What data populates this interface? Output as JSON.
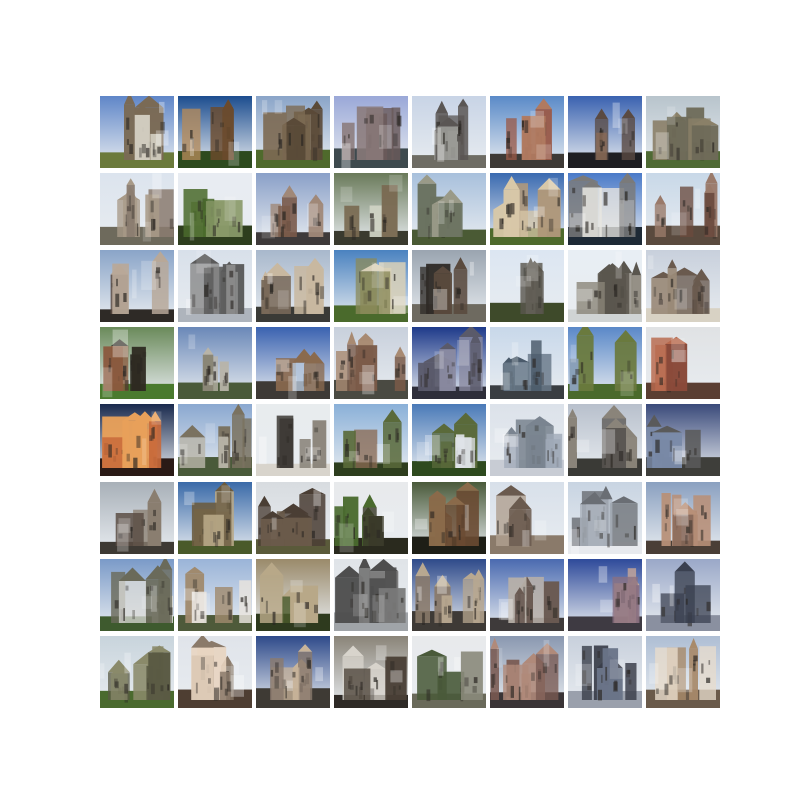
{
  "tiles": [
    [
      "#5f86c8",
      "#d8d4c8",
      "#7a6a55",
      "#6b7a3c"
    ],
    [
      "#1c4d8f",
      "#b58a5a",
      "#6b4a2c",
      "#2d4a1e"
    ],
    [
      "#8aa4c8",
      "#7c6a52",
      "#5a4a38",
      "#4f6a2c"
    ],
    [
      "#9aa8d8",
      "#8a7a7a",
      "#6a5a5a",
      "#3e4a4e"
    ],
    [
      "#c8d4e6",
      "#9a9a96",
      "#5a5654",
      "#6e6c64"
    ],
    [
      "#5a8ac8",
      "#9a5a48",
      "#b07a60",
      "#3e3a36"
    ],
    [
      "#3a62b0",
      "#8a6a56",
      "#5a4a42",
      "#1e1e22"
    ],
    [
      "#b8c4cc",
      "#6e6a58",
      "#8a8068",
      "#4f6a34"
    ],
    [
      "#dce4ee",
      "#8a7c70",
      "#a89a88",
      "#6e6a5c"
    ],
    [
      "#e8ecf2",
      "#4a6a2c",
      "#8a9a6a",
      "#2e3e1e"
    ],
    [
      "#8aa0c8",
      "#7a5a4a",
      "#a08878",
      "#3e3a3a"
    ],
    [
      "#6a7a5a",
      "#cfd2c4",
      "#7a6a52",
      "#3a3a2e"
    ],
    [
      "#a8c0dc",
      "#6a7260",
      "#9a9a88",
      "#4a5a34"
    ],
    [
      "#3a6ab0",
      "#b0987a",
      "#d8c8a8",
      "#4e6a2c"
    ],
    [
      "#4a7ac8",
      "#e8e6e0",
      "#7a7a7a",
      "#1e2a36"
    ],
    [
      "#c8d8e8",
      "#6a4a3e",
      "#9a7a6a",
      "#5a4a3e"
    ],
    [
      "#8aa4c8",
      "#5a4a40",
      "#b8a898",
      "#2e2a26"
    ],
    [
      "#d8e0ea",
      "#8a8a8a",
      "#5a5a5a",
      "#aeb4bc"
    ],
    [
      "#a8b8cc",
      "#7a6a5a",
      "#c8b8a0",
      "#3a3a36"
    ],
    [
      "#4a82c0",
      "#8a8a5a",
      "#d8d0b8",
      "#4a6a2c"
    ],
    [
      "#9aa4b0",
      "#2e2a26",
      "#5a4a3e",
      "#6e6a60"
    ],
    [
      "#dce6f2",
      "#8a8680",
      "#5a564e",
      "#3e4a2a"
    ],
    [
      "#e8eef4",
      "#8a8478",
      "#5a564e",
      "#d0d4d4"
    ],
    [
      "#c8d0dc",
      "#9a8a78",
      "#6a5a4e",
      "#d8d2c4"
    ],
    [
      "#6a8a5a",
      "#8a5a3e",
      "#2e2a22",
      "#4a7a2e"
    ],
    [
      "#6a88b8",
      "#8a8676",
      "#b8b4a8",
      "#4a5a3a"
    ],
    [
      "#3a62b0",
      "#b8c8dc",
      "#8a6a4e",
      "#3e3a36"
    ],
    [
      "#c8d0dc",
      "#7a5a48",
      "#a88a72",
      "#4a4a42"
    ],
    [
      "#1e3a8a",
      "#8a8aa0",
      "#5a5a6a",
      "#2e2e3a"
    ],
    [
      "#c8d8ea",
      "#6a7a8a",
      "#4a5a6a",
      "#3a3e42"
    ],
    [
      "#5a88c8",
      "#8aa0b8",
      "#6a7a3e",
      "#4a6a2c"
    ],
    [
      "#e0e2e4",
      "#8a4a3a",
      "#b86a4e",
      "#5a3e32"
    ],
    [
      "#1a2a4e",
      "#c86a3a",
      "#e8a05a",
      "#2a1a16"
    ],
    [
      "#8aa8d0",
      "#b8b4a8",
      "#7a7260",
      "#4a5a3a"
    ],
    [
      "#e8ecee",
      "#3e3a36",
      "#8a847a",
      "#d8d4cc"
    ],
    [
      "#8ab0d8",
      "#8a6a52",
      "#5a6a3a",
      "#2e3e1e"
    ],
    [
      "#4a7ab8",
      "#e0e4e8",
      "#5a6a3a",
      "#2e4a1e"
    ],
    [
      "#dce2ea",
      "#a0aab8",
      "#7a8490",
      "#c8ccd4"
    ],
    [
      "#b8c0cc",
      "#5a5652",
      "#8a847a",
      "#3a3a36"
    ],
    [
      "#3a4a7a",
      "#7a8aa8",
      "#5a5a5a",
      "#3e3e3a"
    ],
    [
      "#a8b0b8",
      "#5a4e44",
      "#8a7e70",
      "#3e3a34"
    ],
    [
      "#3a6aa8",
      "#b8a888",
      "#6a5a3e",
      "#4a5a2a"
    ],
    [
      "#d8dce0",
      "#6a5a4a",
      "#4a3e34",
      "#5a5a3a"
    ],
    [
      "#e8eaec",
      "#3a3a2a",
      "#4a6a2e",
      "#2a2a1e"
    ],
    [
      "#4a5a3a",
      "#6a4a32",
      "#8a6a4a",
      "#1e1e16"
    ],
    [
      "#d8e0ea",
      "#b0a090",
      "#6a5a4e",
      "#8a7a6a"
    ],
    [
      "#c8d4e2",
      "#aab2bc",
      "#6a6e74",
      "#e8eaee"
    ],
    [
      "#8aa0c0",
      "#8a6a5a",
      "#b89078",
      "#4a3e36"
    ],
    [
      "#7a9ac8",
      "#dcdcd8",
      "#6a6a5a",
      "#3e5a2e"
    ],
    [
      "#9ab4d8",
      "#e8e4de",
      "#a08a6e",
      "#4e5a3a"
    ],
    [
      "#9a8a6a",
      "#4a5a2a",
      "#b8a888",
      "#2e3a1e"
    ],
    [
      "#e0e4e8",
      "#7a7a7a",
      "#4e4e4e",
      "#a0a4a8"
    ],
    [
      "#2e4a8a",
      "#8a7a6a",
      "#b8a890",
      "#3e3a36"
    ],
    [
      "#4a6ab0",
      "#b8b0a8",
      "#6a5a52",
      "#3e3a3a"
    ],
    [
      "#2e4a9a",
      "#8a7080",
      "#c8a898",
      "#3e3a42"
    ],
    [
      "#9aa8c8",
      "#5a6070",
      "#3a4050",
      "#8a90a0"
    ],
    [
      "#c8d4dc",
      "#5a5a44",
      "#8a8a6a",
      "#4a6a2e"
    ],
    [
      "#e0e4ea",
      "#e8d4c0",
      "#8a7a6a",
      "#4e3e32"
    ],
    [
      "#2e4a8a",
      "#8a7a6e",
      "#c8b49a",
      "#3e3a34"
    ],
    [
      "#8a8478",
      "#4a4036",
      "#d8d4cc",
      "#2e2a26"
    ],
    [
      "#e8eaec",
      "#8a8a7a",
      "#4a5a3a",
      "#6a6a5a"
    ],
    [
      "#8a98b0",
      "#7a5a52",
      "#b08a7a",
      "#3a3436"
    ],
    [
      "#c8d0dc",
      "#6a7488",
      "#3a3e4a",
      "#9aa0ac"
    ],
    [
      "#aebed4",
      "#e8dccc",
      "#a88a6a",
      "#6a5a4a"
    ]
  ]
}
